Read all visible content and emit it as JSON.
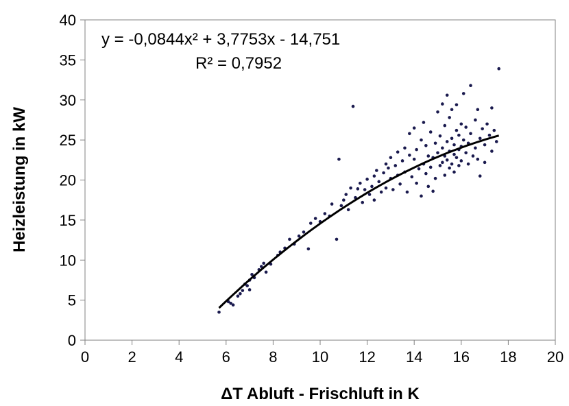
{
  "chart_data": {
    "type": "scatter",
    "xlabel": "ΔT Abluft - Frischluft in K",
    "ylabel": "Heizleistung in kW",
    "xlim": [
      0,
      20
    ],
    "ylim": [
      0,
      40
    ],
    "x_ticks": [
      "0",
      "2",
      "4",
      "6",
      "8",
      "10",
      "12",
      "14",
      "16",
      "18",
      "20"
    ],
    "y_ticks": [
      "0",
      "5",
      "10",
      "15",
      "20",
      "25",
      "30",
      "35",
      "40"
    ],
    "grid": false,
    "legend": false,
    "annotation": {
      "equation": "y = -0,0844x² + 3,7753x - 14,751",
      "r_squared": "R² = 0,7952"
    },
    "trendline": {
      "type": "polynomial",
      "coefficients": [
        -0.0844,
        3.7753,
        -14.751
      ],
      "x_range": [
        5.7,
        17.6
      ]
    },
    "marker_color": "#1a1a4e",
    "series": [
      {
        "points": [
          [
            5.7,
            3.5
          ],
          [
            6.1,
            4.8
          ],
          [
            6.2,
            4.6
          ],
          [
            6.3,
            4.4
          ],
          [
            6.5,
            5.5
          ],
          [
            6.6,
            5.8
          ],
          [
            6.7,
            6.2
          ],
          [
            6.8,
            7.0
          ],
          [
            6.9,
            6.8
          ],
          [
            7.0,
            7.5
          ],
          [
            7.0,
            6.3
          ],
          [
            7.1,
            8.2
          ],
          [
            7.2,
            7.8
          ],
          [
            7.4,
            8.8
          ],
          [
            7.5,
            9.2
          ],
          [
            7.6,
            9.6
          ],
          [
            7.7,
            8.5
          ],
          [
            7.9,
            9.5
          ],
          [
            8.2,
            10.6
          ],
          [
            8.3,
            11.0
          ],
          [
            8.5,
            11.5
          ],
          [
            8.7,
            12.6
          ],
          [
            8.9,
            12.0
          ],
          [
            9.1,
            13.0
          ],
          [
            9.3,
            13.5
          ],
          [
            9.5,
            11.4
          ],
          [
            9.6,
            14.6
          ],
          [
            9.8,
            15.2
          ],
          [
            10.0,
            14.8
          ],
          [
            10.2,
            15.8
          ],
          [
            10.4,
            15.5
          ],
          [
            10.5,
            17.0
          ],
          [
            10.7,
            12.6
          ],
          [
            10.8,
            22.6
          ],
          [
            10.9,
            16.8
          ],
          [
            11.0,
            17.5
          ],
          [
            11.1,
            18.2
          ],
          [
            11.2,
            16.3
          ],
          [
            11.3,
            19.0
          ],
          [
            11.4,
            29.2
          ],
          [
            11.5,
            17.8
          ],
          [
            11.6,
            18.9
          ],
          [
            11.7,
            19.6
          ],
          [
            11.8,
            17.2
          ],
          [
            11.9,
            18.8
          ],
          [
            12.0,
            20.1
          ],
          [
            12.1,
            18.2
          ],
          [
            12.2,
            19.2
          ],
          [
            12.3,
            20.5
          ],
          [
            12.3,
            17.5
          ],
          [
            12.4,
            21.2
          ],
          [
            12.5,
            19.8
          ],
          [
            12.6,
            18.5
          ],
          [
            12.7,
            20.9
          ],
          [
            12.8,
            22.0
          ],
          [
            12.8,
            19.0
          ],
          [
            12.9,
            21.5
          ],
          [
            13.0,
            20.2
          ],
          [
            13.0,
            22.8
          ],
          [
            13.1,
            18.8
          ],
          [
            13.2,
            21.8
          ],
          [
            13.3,
            23.5
          ],
          [
            13.3,
            20.6
          ],
          [
            13.4,
            19.5
          ],
          [
            13.5,
            22.4
          ],
          [
            13.6,
            24.0
          ],
          [
            13.6,
            21.0
          ],
          [
            13.7,
            18.5
          ],
          [
            13.8,
            23.1
          ],
          [
            13.8,
            25.8
          ],
          [
            13.9,
            20.4
          ],
          [
            14.0,
            22.6
          ],
          [
            14.0,
            26.5
          ],
          [
            14.1,
            19.6
          ],
          [
            14.1,
            23.8
          ],
          [
            14.2,
            21.4
          ],
          [
            14.3,
            25.0
          ],
          [
            14.3,
            18.0
          ],
          [
            14.4,
            22.0
          ],
          [
            14.4,
            27.2
          ],
          [
            14.5,
            20.8
          ],
          [
            14.5,
            24.3
          ],
          [
            14.6,
            19.2
          ],
          [
            14.6,
            23.0
          ],
          [
            14.7,
            21.6
          ],
          [
            14.7,
            26.0
          ],
          [
            14.8,
            18.6
          ],
          [
            14.8,
            22.8
          ],
          [
            14.9,
            24.6
          ],
          [
            14.9,
            20.2
          ],
          [
            15.0,
            23.4
          ],
          [
            15.0,
            28.5
          ],
          [
            15.1,
            21.8
          ],
          [
            15.1,
            25.5
          ],
          [
            15.2,
            22.2
          ],
          [
            15.2,
            24.0
          ],
          [
            15.2,
            29.5
          ],
          [
            15.3,
            23.0
          ],
          [
            15.3,
            20.6
          ],
          [
            15.3,
            26.8
          ],
          [
            15.4,
            22.5
          ],
          [
            15.4,
            24.8
          ],
          [
            15.4,
            30.6
          ],
          [
            15.5,
            21.5
          ],
          [
            15.5,
            23.6
          ],
          [
            15.5,
            27.8
          ],
          [
            15.6,
            22.0
          ],
          [
            15.6,
            25.2
          ],
          [
            15.6,
            28.8
          ],
          [
            15.7,
            23.2
          ],
          [
            15.7,
            24.4
          ],
          [
            15.7,
            21.0
          ],
          [
            15.8,
            22.8
          ],
          [
            15.8,
            26.2
          ],
          [
            15.8,
            29.4
          ],
          [
            15.9,
            23.8
          ],
          [
            15.9,
            25.6
          ],
          [
            15.9,
            21.8
          ],
          [
            16.0,
            24.2
          ],
          [
            16.0,
            27.0
          ],
          [
            16.0,
            22.4
          ],
          [
            16.1,
            25.0
          ],
          [
            16.1,
            30.8
          ],
          [
            16.2,
            23.4
          ],
          [
            16.2,
            26.6
          ],
          [
            16.3,
            24.6
          ],
          [
            16.3,
            22.0
          ],
          [
            16.4,
            31.8
          ],
          [
            16.4,
            25.8
          ],
          [
            16.5,
            23.0
          ],
          [
            16.6,
            27.5
          ],
          [
            16.6,
            24.0
          ],
          [
            16.7,
            22.6
          ],
          [
            16.7,
            28.8
          ],
          [
            16.8,
            25.2
          ],
          [
            16.8,
            20.5
          ],
          [
            16.9,
            26.4
          ],
          [
            17.0,
            24.4
          ],
          [
            17.0,
            22.2
          ],
          [
            17.1,
            27.0
          ],
          [
            17.2,
            25.6
          ],
          [
            17.3,
            29.0
          ],
          [
            17.3,
            23.6
          ],
          [
            17.4,
            26.2
          ],
          [
            17.5,
            24.8
          ],
          [
            17.6,
            33.9
          ]
        ]
      }
    ]
  }
}
